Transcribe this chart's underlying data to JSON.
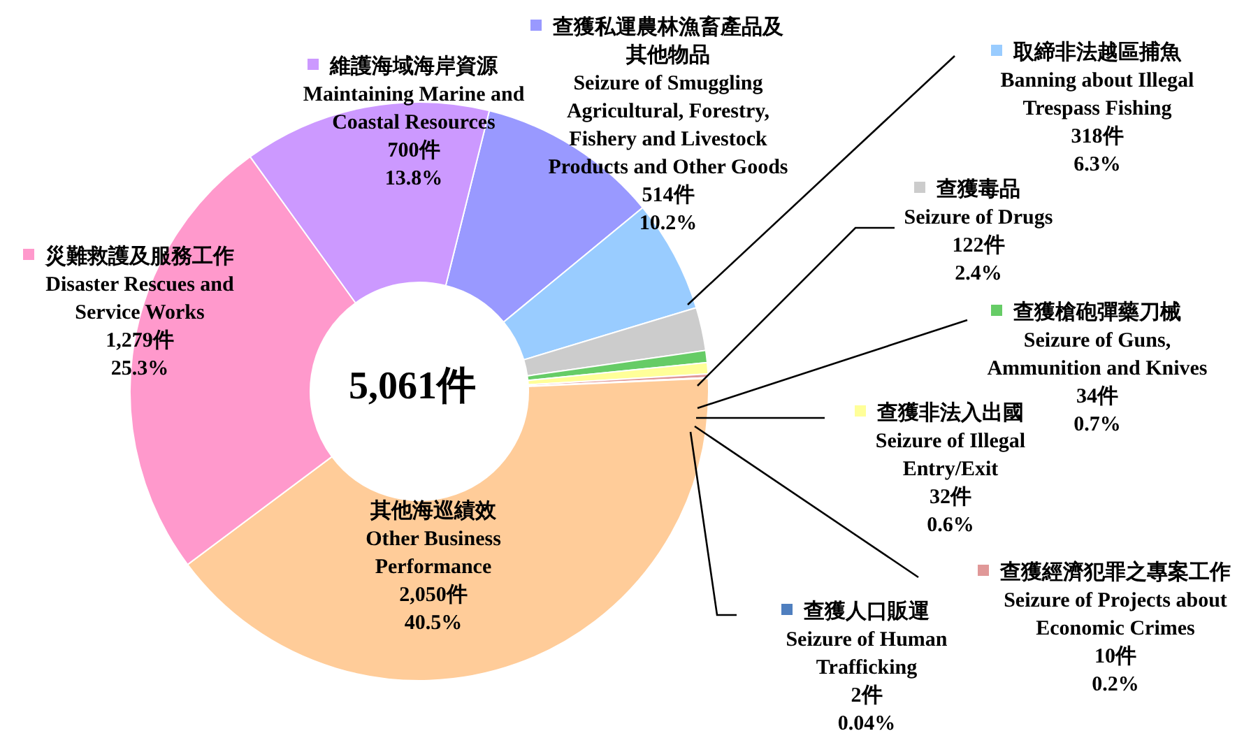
{
  "chart_data": {
    "type": "donut",
    "legend": "right",
    "categories": [
      "查獲私運農林漁畜產品及其他物品\nSeizure of Smuggling\nAgricultural, Forestry,\nFishery and Livestock\nProducts and Other Goods",
      "取締非法越區捕魚\nBanning about Illegal\nTrespass Fishing",
      "查獲毒品\nSeizure of Drugs",
      "查獲槍砲彈藥刀械\nSeizure of Guns,\nAmmunition and Knives",
      "查獲非法入出國\nSeizure of Illegal\nEntry/Exit",
      "查獲經濟犯罪之專案工作\nSeizure of Projects about\nEconomic Crimes",
      "查獲人口販運\nSeizure of Human\nTrafficking",
      "其他海巡績效\nOther Business\nPerformance",
      "災難救護及服務工作\nDisaster Rescues and\nService Works",
      "維護海域海岸資源\nMaintaining Marine and\nCoastal Resources"
    ],
    "values": [
      514,
      318,
      122,
      34,
      32,
      10,
      2,
      2050,
      1279,
      700
    ],
    "colors": [
      "#9999ff",
      "#99ccff",
      "#cccccc",
      "#66cc66",
      "#ffff99",
      "#e09898",
      "#4f7fbf",
      "#ffcc99",
      "#ff99cc",
      "#cc99ff"
    ],
    "value_labels": [
      "514件\n10.2%",
      "318件\n6.3%",
      "122件\n2.4%",
      "34件\n0.7%",
      "32件\n0.6%",
      "10件\n0.2%",
      "2件\n0.04%",
      "2,050件\n40.5%",
      "1,279件\n25.3%",
      "700件\n13.8%"
    ],
    "annotations": [
      "5,061件"
    ]
  }
}
